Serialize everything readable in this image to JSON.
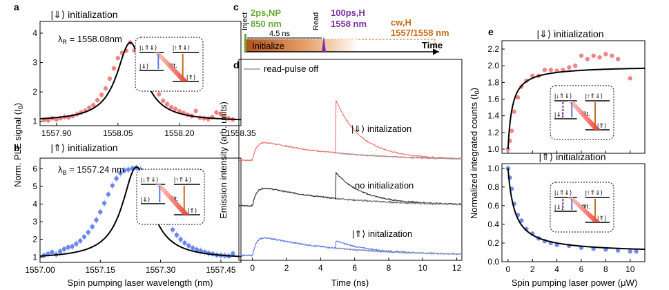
{
  "colors": {
    "red": "#f07070",
    "blue": "#5577ee",
    "black": "#000000",
    "green": "#66aa33",
    "purple": "#7a2fa0",
    "orange": "#c96a1a",
    "gray": "#999999",
    "dark": "#333333"
  },
  "panels": {
    "a": {
      "letter": "a",
      "title": "|⇓⟩ initialization",
      "label": "λR = 1558.08nm",
      "lambda_sym": "λ",
      "lambda_sub": "R",
      "lambda_val": " = 1558.08nm"
    },
    "b": {
      "letter": "b",
      "title": "|⇑⟩ initialization",
      "label": "λB = 1557.24 nm",
      "lambda_sym": "λ",
      "lambda_sub": "B",
      "lambda_val": " = 1557.24 nm"
    },
    "ab_ylabel": "Norm. PLE signal (I0)",
    "ab_ylabel_main": "Norm. PLE signal (I",
    "ab_ylabel_sub": "0",
    "ab_ylabel_end": ")",
    "ab_xlabel": "Spin pumping laser wavelength (nm)",
    "c": {
      "letter": "c",
      "inject": "Inject",
      "read": "Read",
      "pulse1_line1": "2ps,NP",
      "pulse1_line2": "850 nm",
      "pulse2_line1": "100ps,H",
      "pulse2_line2": "1558 nm",
      "cw_line1": "cw,H",
      "cw_line2": "1557/1558 nm",
      "delay": "4.5 ns",
      "initialize": "Initialize",
      "time": "Time"
    },
    "d": {
      "letter": "d",
      "legend": "read-pulse off",
      "ylabel": "Emission intensity (arb. units)",
      "xlabel": "Time (ns)",
      "trace1": "|⇓⟩ initalization",
      "trace2": "no initialization",
      "trace3": "|⇑⟩ initalization"
    },
    "e": {
      "letter": "e",
      "title_top": "|⇓⟩ initialization",
      "title_bottom": "|⇑⟩ initialization",
      "ylabel": "Normalized integrated counts (I0)",
      "ylabel_main": "Normalized integrated counts (I",
      "ylabel_sub": "0",
      "ylabel_end": ")",
      "xlabel": "Spin pumping laser power (μW)"
    },
    "level_labels": {
      "t1": "|↓⇑⇓⟩",
      "t2": "|↑⇑⇓⟩",
      "g1": "|⇓⟩",
      "g2": "|⇑⟩",
      "filt": "filt."
    }
  },
  "chart_data": [
    {
      "id": "a",
      "type": "scatter",
      "title": "|⇓⟩ initialization",
      "xlabel": "Spin pumping laser wavelength (nm)",
      "ylabel": "Norm. PLE signal (I0)",
      "xlim": [
        1557.86,
        1558.35
      ],
      "ylim": [
        0.85,
        4.4
      ],
      "xticks": [
        1557.9,
        1558.05,
        1558.2,
        1558.35
      ],
      "xtick_labels": [
        "1557.90",
        "1558.05",
        "1558.20",
        "1558.35"
      ],
      "yticks": [
        1,
        2,
        3,
        4
      ],
      "ytick_labels": [
        "1",
        "2",
        "3",
        "4"
      ],
      "fit": {
        "x0": 1558.08,
        "fwhm": 0.08,
        "baseline": 1.0,
        "amplitude": 2.68
      },
      "points": [
        [
          1557.87,
          1.05
        ],
        [
          1557.88,
          1.03
        ],
        [
          1557.89,
          1.1
        ],
        [
          1557.9,
          1.06
        ],
        [
          1557.91,
          1.11
        ],
        [
          1557.92,
          1.15
        ],
        [
          1557.93,
          1.13
        ],
        [
          1557.94,
          1.18
        ],
        [
          1557.95,
          1.24
        ],
        [
          1557.96,
          1.3
        ],
        [
          1557.97,
          1.36
        ],
        [
          1557.98,
          1.46
        ],
        [
          1557.99,
          1.55
        ],
        [
          1558.0,
          1.72
        ],
        [
          1558.01,
          1.9
        ],
        [
          1558.02,
          2.12
        ],
        [
          1558.03,
          2.45
        ],
        [
          1558.04,
          2.8
        ],
        [
          1558.05,
          3.15
        ],
        [
          1558.06,
          3.33
        ],
        [
          1558.07,
          3.4
        ],
        [
          1558.08,
          3.68
        ],
        [
          1558.09,
          3.41
        ],
        [
          1558.1,
          3.3
        ],
        [
          1558.11,
          3.05
        ],
        [
          1558.12,
          2.75
        ],
        [
          1558.13,
          2.45
        ],
        [
          1558.14,
          2.15
        ],
        [
          1558.15,
          1.92
        ],
        [
          1558.16,
          1.7
        ],
        [
          1558.17,
          1.58
        ],
        [
          1558.18,
          1.48
        ],
        [
          1558.19,
          1.42
        ],
        [
          1558.2,
          1.34
        ],
        [
          1558.21,
          1.28
        ],
        [
          1558.22,
          1.22
        ],
        [
          1558.23,
          1.18
        ],
        [
          1558.24,
          1.35
        ],
        [
          1558.25,
          1.12
        ],
        [
          1558.26,
          1.1
        ],
        [
          1558.27,
          1.08
        ],
        [
          1558.28,
          1.14
        ],
        [
          1558.29,
          1.3
        ],
        [
          1558.3,
          1.25
        ],
        [
          1558.31,
          1.18
        ],
        [
          1558.32,
          1.1
        ],
        [
          1558.33,
          1.06
        ]
      ]
    },
    {
      "id": "b",
      "type": "scatter",
      "title": "|⇑⟩ initialization",
      "xlabel": "Spin pumping laser wavelength (nm)",
      "ylabel": "Norm. PLE signal (I0)",
      "xlim": [
        1557.0,
        1557.5
      ],
      "ylim": [
        0.7,
        6.6
      ],
      "xticks": [
        1557.0,
        1557.15,
        1557.3,
        1557.45
      ],
      "xtick_labels": [
        "1557.00",
        "1557.15",
        "1557.30",
        "1557.45"
      ],
      "yticks": [
        1,
        2,
        3,
        4,
        5,
        6
      ],
      "ytick_labels": [
        "1",
        "2",
        "3",
        "4",
        "5",
        "6"
      ],
      "fit": {
        "x0": 1557.24,
        "fwhm": 0.085,
        "baseline": 0.9,
        "amplitude": 5.2
      },
      "points": [
        [
          1557.01,
          1.1
        ],
        [
          1557.02,
          1.18
        ],
        [
          1557.03,
          1.28
        ],
        [
          1557.04,
          1.15
        ],
        [
          1557.05,
          1.32
        ],
        [
          1557.06,
          1.45
        ],
        [
          1557.07,
          1.55
        ],
        [
          1557.08,
          1.6
        ],
        [
          1557.09,
          1.75
        ],
        [
          1557.1,
          1.92
        ],
        [
          1557.11,
          2.15
        ],
        [
          1557.12,
          2.4
        ],
        [
          1557.13,
          2.72
        ],
        [
          1557.14,
          3.1
        ],
        [
          1557.15,
          3.55
        ],
        [
          1557.16,
          4.05
        ],
        [
          1557.17,
          4.55
        ],
        [
          1557.18,
          5.05
        ],
        [
          1557.19,
          5.45
        ],
        [
          1557.2,
          5.75
        ],
        [
          1557.21,
          5.9
        ],
        [
          1557.22,
          5.95
        ],
        [
          1557.23,
          6.02
        ],
        [
          1557.24,
          6.05
        ],
        [
          1557.25,
          5.95
        ],
        [
          1557.26,
          5.7
        ],
        [
          1557.27,
          5.35
        ],
        [
          1557.28,
          4.9
        ],
        [
          1557.29,
          4.4
        ],
        [
          1557.3,
          3.9
        ],
        [
          1557.31,
          3.4
        ],
        [
          1557.32,
          2.95
        ],
        [
          1557.33,
          2.55
        ],
        [
          1557.34,
          2.25
        ],
        [
          1557.35,
          2.0
        ],
        [
          1557.36,
          1.8
        ],
        [
          1557.37,
          1.65
        ],
        [
          1557.38,
          1.52
        ],
        [
          1557.39,
          1.42
        ],
        [
          1557.4,
          1.35
        ],
        [
          1557.41,
          1.28
        ],
        [
          1557.42,
          1.22
        ],
        [
          1557.43,
          1.18
        ],
        [
          1557.44,
          1.12
        ],
        [
          1557.45,
          1.1
        ],
        [
          1557.46,
          1.08
        ],
        [
          1557.47,
          1.05
        ],
        [
          1557.48,
          1.2
        ]
      ]
    },
    {
      "id": "d",
      "type": "line",
      "xlabel": "Time (ns)",
      "ylabel": "Emission intensity (arb. units)",
      "xlim": [
        -0.8,
        12.3
      ],
      "xticks": [
        0,
        2,
        4,
        6,
        8,
        10,
        12
      ],
      "xtick_labels": [
        "0",
        "2",
        "4",
        "6",
        "8",
        "10",
        "12"
      ],
      "legend": "read-pulse off",
      "series": [
        {
          "name": "|⇓⟩ initalization",
          "color": "#f07070",
          "offset": 2.0,
          "read_peak": 0.85
        },
        {
          "name": "no initialization",
          "color": "#333333",
          "offset": 1.0,
          "read_peak": 0.42
        },
        {
          "name": "|⇑⟩ initalization",
          "color": "#5577ee",
          "offset": 0.0,
          "read_peak": 0.12
        }
      ],
      "read_pulse_off_color": "#999999"
    },
    {
      "id": "e-top",
      "type": "scatter",
      "title": "|⇓⟩ initialization",
      "xlabel": "Spin pumping laser power (μW)",
      "ylabel": "Normalized integrated counts (I0)",
      "xlim": [
        -0.5,
        11.2
      ],
      "ylim": [
        0.95,
        2.3
      ],
      "xticks": [
        0,
        2,
        4,
        6,
        8,
        10
      ],
      "yticks": [
        1.0,
        1.2,
        1.4,
        1.6,
        1.8,
        2.0,
        2.2
      ],
      "ytick_labels": [
        "1.0",
        "1.2",
        "1.4",
        "1.6",
        "1.8",
        "2.0",
        "2.2"
      ],
      "fit": {
        "a": 1.0,
        "b": 1.0,
        "p0": 0.35
      },
      "points": [
        [
          0.0,
          1.0
        ],
        [
          0.15,
          1.1
        ],
        [
          0.3,
          1.22
        ],
        [
          0.5,
          1.45
        ],
        [
          0.8,
          1.62
        ],
        [
          1.1,
          1.75
        ],
        [
          1.5,
          1.82
        ],
        [
          2.0,
          1.88
        ],
        [
          2.5,
          1.88
        ],
        [
          3.0,
          1.95
        ],
        [
          3.5,
          1.95
        ],
        [
          4.0,
          1.94
        ],
        [
          4.5,
          1.95
        ],
        [
          5.0,
          1.98
        ],
        [
          5.5,
          2.0
        ],
        [
          6.0,
          2.12
        ],
        [
          6.5,
          2.08
        ],
        [
          7.0,
          2.12
        ],
        [
          7.5,
          2.1
        ],
        [
          8.0,
          2.14
        ],
        [
          8.5,
          2.12
        ],
        [
          9.0,
          2.08
        ],
        [
          10.0,
          1.85
        ]
      ]
    },
    {
      "id": "e-bottom",
      "type": "scatter",
      "title": "|⇑⟩ initialization",
      "xlabel": "Spin pumping laser power (μW)",
      "ylabel": "Normalized integrated counts (I0)",
      "xlim": [
        -0.5,
        11.2
      ],
      "ylim": [
        0.0,
        1.05
      ],
      "xticks": [
        0,
        2,
        4,
        6,
        8,
        10
      ],
      "xtick_labels": [
        "0",
        "2",
        "4",
        "6",
        "8",
        "10"
      ],
      "yticks": [
        0.0,
        0.2,
        0.4,
        0.6,
        0.8,
        1.0
      ],
      "ytick_labels": [
        "0.0",
        "0.2",
        "0.4",
        "0.6",
        "0.8",
        "1.0"
      ],
      "fit": {
        "a": 1.0,
        "c": 0.09,
        "p0": 0.55
      },
      "points": [
        [
          0.0,
          1.0
        ],
        [
          0.15,
          0.9
        ],
        [
          0.3,
          0.78
        ],
        [
          0.5,
          0.62
        ],
        [
          0.8,
          0.5
        ],
        [
          1.1,
          0.44
        ],
        [
          1.5,
          0.35
        ],
        [
          2.0,
          0.3
        ],
        [
          2.5,
          0.25
        ],
        [
          3.0,
          0.22
        ],
        [
          3.5,
          0.2
        ],
        [
          4.0,
          0.18
        ],
        [
          5.0,
          0.17
        ],
        [
          6.0,
          0.15
        ],
        [
          7.0,
          0.14
        ],
        [
          8.0,
          0.13
        ],
        [
          9.0,
          0.12
        ],
        [
          10.0,
          0.11
        ],
        [
          10.5,
          0.11
        ]
      ]
    }
  ]
}
